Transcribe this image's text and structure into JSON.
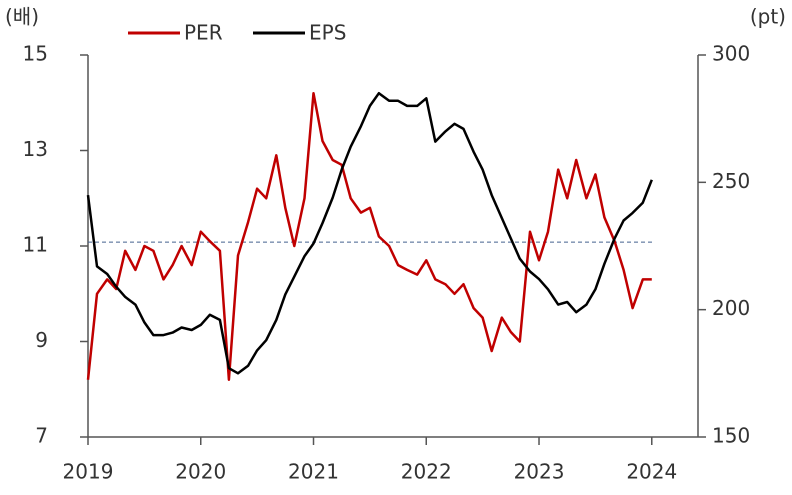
{
  "chart_data": {
    "type": "line",
    "y_unit_label": "(배)",
    "y2_unit_label": "(pt)",
    "x": [
      2019,
      2019.08,
      2019.17,
      2019.25,
      2019.33,
      2019.42,
      2019.5,
      2019.58,
      2019.67,
      2019.75,
      2019.83,
      2019.92,
      2020,
      2020.08,
      2020.17,
      2020.25,
      2020.33,
      2020.42,
      2020.5,
      2020.58,
      2020.67,
      2020.75,
      2020.83,
      2020.92,
      2021,
      2021.08,
      2021.17,
      2021.25,
      2021.33,
      2021.42,
      2021.5,
      2021.58,
      2021.67,
      2021.75,
      2021.83,
      2021.92,
      2022,
      2022.08,
      2022.17,
      2022.25,
      2022.33,
      2022.42,
      2022.5,
      2022.58,
      2022.67,
      2022.75,
      2022.83,
      2022.92,
      2023,
      2023.08,
      2023.17,
      2023.25,
      2023.33,
      2023.42,
      2023.5,
      2023.58,
      2023.67,
      2023.75,
      2023.83,
      2023.92,
      2024
    ],
    "series": [
      {
        "name": "PER",
        "color": "#c00000",
        "axis": "y",
        "values": [
          8.2,
          10.0,
          10.3,
          10.1,
          10.9,
          10.5,
          11.0,
          10.9,
          10.3,
          10.6,
          11.0,
          10.6,
          11.3,
          11.1,
          10.9,
          8.2,
          10.8,
          11.5,
          12.2,
          12.0,
          12.9,
          11.8,
          11.0,
          12.0,
          14.2,
          13.2,
          12.8,
          12.7,
          12.0,
          11.7,
          11.8,
          11.2,
          11.0,
          10.6,
          10.5,
          10.4,
          10.7,
          10.3,
          10.2,
          10.0,
          10.2,
          9.7,
          9.5,
          8.8,
          9.5,
          9.2,
          9.0,
          11.3,
          10.7,
          11.3,
          12.6,
          12.0,
          12.8,
          12.0,
          12.5,
          11.6,
          11.1,
          10.5,
          9.7,
          10.3,
          10.3
        ]
      },
      {
        "name": "EPS",
        "color": "#000000",
        "axis": "y2",
        "values": [
          245,
          217,
          214,
          209,
          205,
          202,
          195,
          190,
          190,
          191,
          193,
          192,
          194,
          198,
          196,
          177,
          175,
          178,
          184,
          188,
          196,
          206,
          213,
          221,
          226,
          234,
          244,
          255,
          264,
          272,
          280,
          285,
          282,
          282,
          280,
          280,
          283,
          266,
          270,
          273,
          271,
          262,
          255,
          245,
          236,
          228,
          220,
          215,
          212,
          208,
          202,
          203,
          199,
          202,
          208,
          218,
          228,
          235,
          238,
          242,
          251
        ]
      }
    ],
    "hline": 11.08,
    "xlim": [
      2019,
      2024.41
    ],
    "xticks": [
      2019,
      2020,
      2021,
      2022,
      2023,
      2024
    ],
    "ylim": [
      7,
      15
    ],
    "yticks": [
      7,
      9,
      11,
      13,
      15
    ],
    "y2lim": [
      150,
      300
    ],
    "y2ticks": [
      150,
      200,
      250,
      300
    ],
    "legend": "top"
  }
}
